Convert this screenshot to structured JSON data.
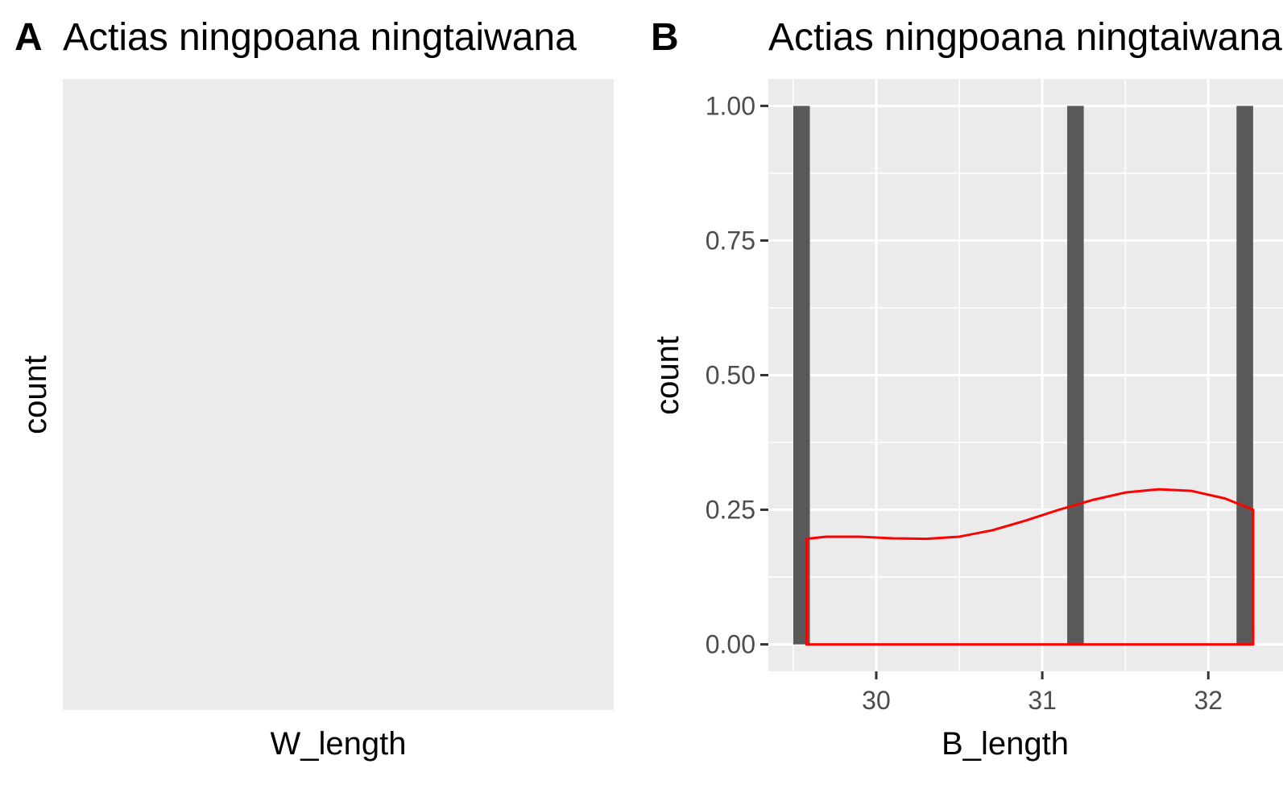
{
  "chart_data": [
    {
      "tag": "A",
      "type": "bar",
      "title": "Actias ningpoana ningtaiwana",
      "xlabel": "W_length",
      "ylabel": "count",
      "empty": true,
      "grid": true
    },
    {
      "tag": "B",
      "type": "bar",
      "title": "Actias ningpoana ningtaiwana",
      "xlabel": "B_length",
      "ylabel": "count",
      "grid": true,
      "xlim": [
        29.35,
        32.45
      ],
      "ylim": [
        -0.05,
        1.05
      ],
      "xticks": [
        30,
        31,
        32
      ],
      "xtick_labels": [
        "30",
        "31",
        "32"
      ],
      "yticks": [
        0,
        0.25,
        0.5,
        0.75,
        1
      ],
      "ytick_labels": [
        "0.00",
        "0.25",
        "0.50",
        "0.75",
        "1.00"
      ],
      "series": [
        {
          "kind": "histogram",
          "color": "#595959",
          "bins": [
            {
              "x0": 29.5,
              "x1": 29.6,
              "count": 1
            },
            {
              "x0": 31.15,
              "x1": 31.25,
              "count": 1
            },
            {
              "x0": 32.17,
              "x1": 32.27,
              "count": 1
            }
          ]
        },
        {
          "kind": "density",
          "color": "#ff0000",
          "x": [
            29.58,
            29.7,
            29.9,
            30.1,
            30.3,
            30.5,
            30.7,
            30.9,
            31.1,
            31.3,
            31.5,
            31.7,
            31.9,
            32.1,
            32.27
          ],
          "y": [
            0.196,
            0.2,
            0.2,
            0.197,
            0.196,
            0.2,
            0.212,
            0.23,
            0.25,
            0.268,
            0.282,
            0.288,
            0.285,
            0.271,
            0.25
          ]
        }
      ]
    }
  ]
}
